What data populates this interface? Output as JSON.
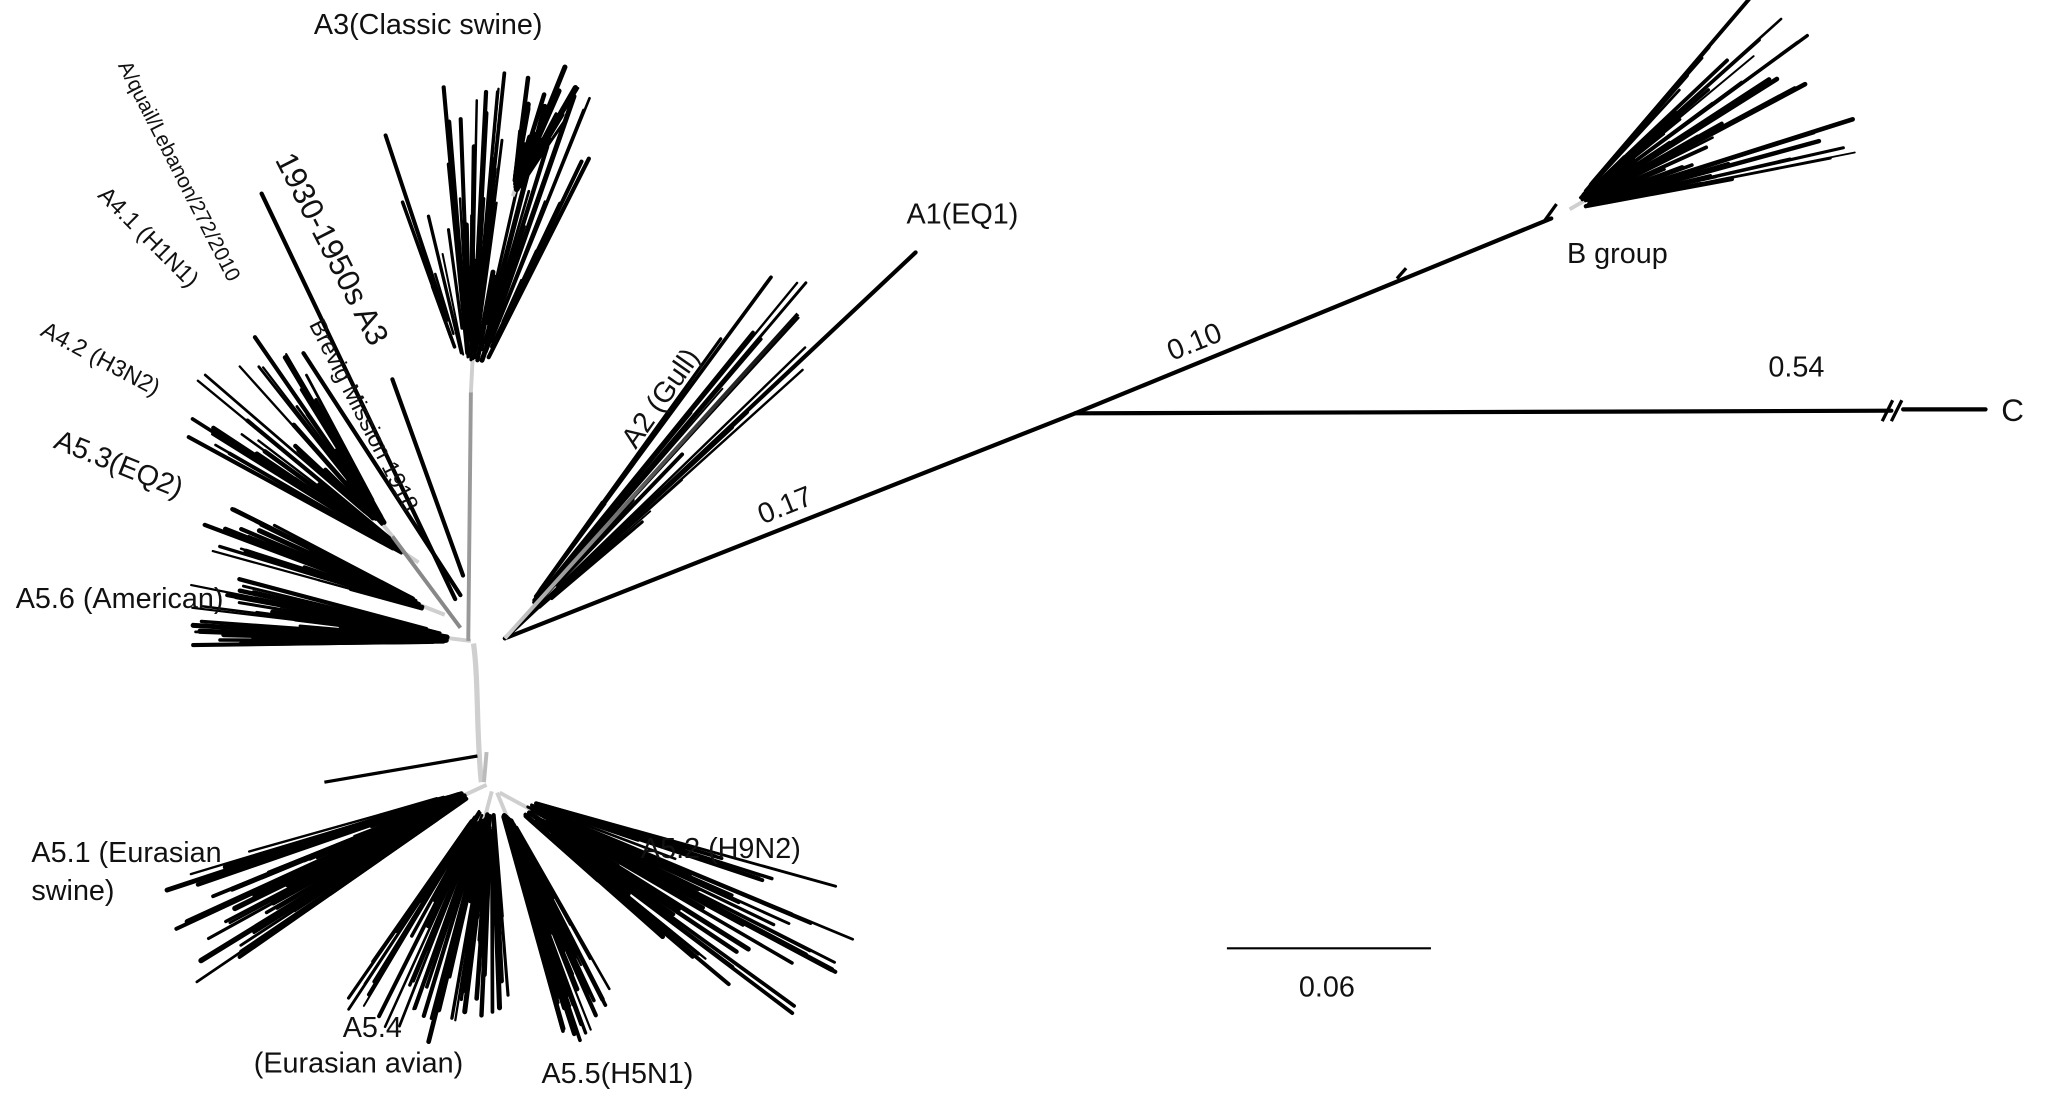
{
  "figure": {
    "clade_labels": {
      "a3_classic_swine": "A3(Classic swine)",
      "a_quail_lebanon": "A/quail/Lebanon/272/2010",
      "a3_1930_1950s": "1930-1950s A3",
      "a4_1_h1n1": "A4.1 (H1N1)",
      "brevig_mission": "Brevig Mission 1918",
      "a4_2_h3n2": "A4.2 (H3N2)",
      "a5_3_eq2": "A5.3(EQ2)",
      "a5_6_american": "A5.6 (American)",
      "a2_gull": "A2 (Gull)",
      "a1_eq1": "A1(EQ1)",
      "b_group": "B group",
      "c": "C",
      "a5_1_line1": "A5.1 (Eurasian",
      "a5_1_line2": "swine)",
      "a5_4_line1": "A5.4",
      "a5_4_line2": "(Eurasian avian)",
      "a5_5_h5n1": "A5.5(H5N1)",
      "a5_2_h9n2": "A5.2 (H9N2)"
    },
    "branch_lengths": {
      "to_b_c_split": "0.17",
      "to_b_group": "0.10",
      "to_c": "0.54"
    },
    "scale_bar": {
      "label": "0.06"
    },
    "colors": {
      "branch": "#000000",
      "internal_branch": "#c8c8c8",
      "background": "#ffffff"
    }
  }
}
